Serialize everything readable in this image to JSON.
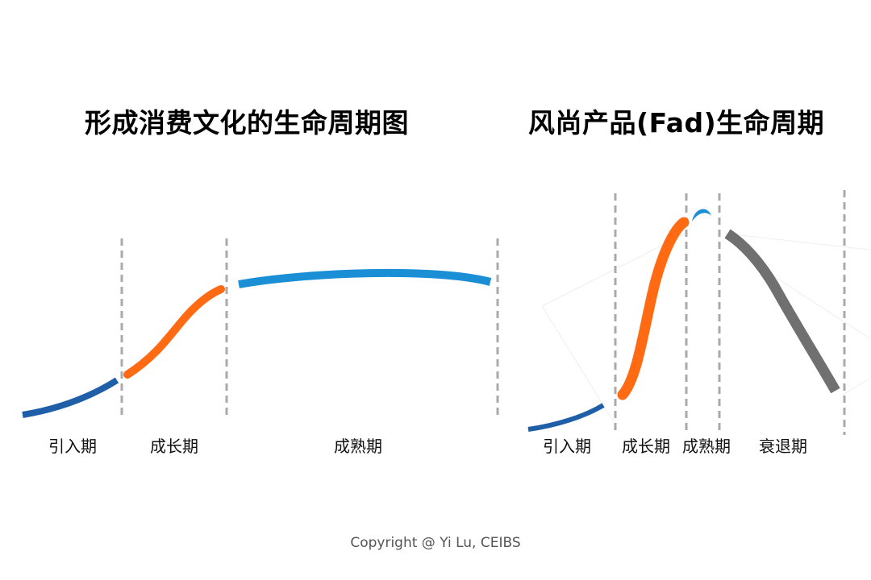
{
  "left_diagram": {
    "title": "形成消费文化的生命周期图",
    "stages": [
      "引入期",
      "成长期",
      "成熟期"
    ]
  },
  "right_diagram": {
    "title": "风尚产品(Fad)生命周期",
    "stages": [
      "引入期",
      "成长期",
      "成熟期",
      "衰退期"
    ]
  },
  "colors": {
    "introduction": "#1f5fa8",
    "growth": "#ff6a13",
    "maturity": "#1a8fd6",
    "decline": "#707070",
    "divider": "#aaaaaa"
  },
  "footer": {
    "copyright": "Copyright @ Yi Lu, CEIBS"
  }
}
